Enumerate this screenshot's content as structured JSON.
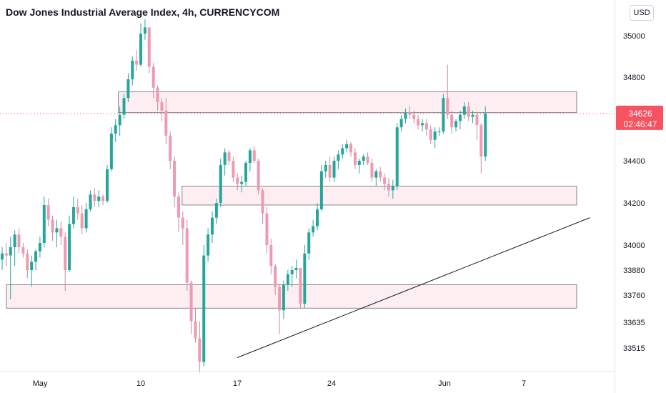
{
  "header": {
    "title": "Dow Jones Industrial Average Index, 4h, CURRENCYCOM",
    "currency_label": "USD"
  },
  "price_badge": {
    "price": "34626",
    "countdown": "02:46:47",
    "color": "#f7525f"
  },
  "colors": {
    "up": "#26a69a",
    "down": "#ef9ab0",
    "zone_fill": "#fdeef2",
    "zone_stroke": "#555555",
    "trendline": "#131722"
  },
  "chart_data": {
    "type": "candlestick",
    "title": "Dow Jones Industrial Average Index, 4h, CURRENCYCOM",
    "y_axis_ticks": [
      35000,
      34800,
      34400,
      34200,
      34000,
      33880,
      33760,
      33635,
      33515
    ],
    "x_axis_ticks": [
      {
        "label": "May",
        "date": "2021-05-01"
      },
      {
        "label": "10",
        "date": "2021-05-10"
      },
      {
        "label": "17",
        "date": "2021-05-17"
      },
      {
        "label": "24",
        "date": "2021-05-24"
      },
      {
        "label": "Jun",
        "date": "2021-06-01"
      },
      {
        "label": "7",
        "date": "2021-06-07"
      }
    ],
    "last_price": 34626,
    "zones": [
      {
        "from_date": "2021-05-08",
        "to_date": "2021-06-11",
        "low": 34630,
        "high": 34730
      },
      {
        "from_date": "2021-05-13",
        "to_date": "2021-06-11",
        "low": 34190,
        "high": 34280
      },
      {
        "from_date": "2021-04-28",
        "to_date": "2021-06-11",
        "low": 33700,
        "high": 33810
      }
    ],
    "trendline": {
      "start": [
        "2021-05-17",
        33470
      ],
      "end": [
        "2021-06-12",
        34130
      ]
    },
    "candles": [
      [
        33930,
        33990,
        33880,
        33960
      ],
      [
        33960,
        34010,
        33900,
        33950
      ],
      [
        33950,
        34040,
        33740,
        33990
      ],
      [
        33990,
        34070,
        33900,
        34050
      ],
      [
        34050,
        34080,
        33960,
        33990
      ],
      [
        33990,
        34010,
        33940,
        33960
      ],
      [
        33960,
        33980,
        33840,
        33880
      ],
      [
        33880,
        33950,
        33800,
        33920
      ],
      [
        33920,
        33980,
        33880,
        33970
      ],
      [
        33970,
        34040,
        33940,
        34010
      ],
      [
        34010,
        34230,
        33990,
        34190
      ],
      [
        34190,
        34220,
        34090,
        34120
      ],
      [
        34120,
        34140,
        34020,
        34060
      ],
      [
        34060,
        34120,
        33990,
        34080
      ],
      [
        34080,
        34110,
        34000,
        34040
      ],
      [
        34040,
        34060,
        33780,
        33880
      ],
      [
        33880,
        34140,
        33870,
        34100
      ],
      [
        34100,
        34230,
        34080,
        34180
      ],
      [
        34180,
        34220,
        34120,
        34150
      ],
      [
        34150,
        34190,
        34050,
        34080
      ],
      [
        34080,
        34200,
        34060,
        34170
      ],
      [
        34170,
        34260,
        34160,
        34240
      ],
      [
        34240,
        34270,
        34180,
        34210
      ],
      [
        34210,
        34260,
        34180,
        34230
      ],
      [
        34230,
        34240,
        34190,
        34210
      ],
      [
        34210,
        34380,
        34200,
        34360
      ],
      [
        34360,
        34560,
        34350,
        34530
      ],
      [
        34530,
        34600,
        34490,
        34570
      ],
      [
        34570,
        34660,
        34520,
        34620
      ],
      [
        34620,
        34720,
        34600,
        34700
      ],
      [
        34700,
        34820,
        34680,
        34790
      ],
      [
        34790,
        34900,
        34760,
        34880
      ],
      [
        34880,
        34930,
        34830,
        34860
      ],
      [
        34860,
        35060,
        34850,
        35010
      ],
      [
        35010,
        35080,
        34980,
        35040
      ],
      [
        35040,
        35040,
        34820,
        34850
      ],
      [
        34850,
        34870,
        34700,
        34750
      ],
      [
        34750,
        34760,
        34640,
        34680
      ],
      [
        34680,
        34700,
        34590,
        34640
      ],
      [
        34640,
        34700,
        34480,
        34520
      ],
      [
        34520,
        34540,
        34360,
        34400
      ],
      [
        34400,
        34420,
        34180,
        34230
      ],
      [
        34230,
        34250,
        34060,
        34130
      ],
      [
        34130,
        34160,
        34000,
        34080
      ],
      [
        34080,
        34120,
        33780,
        33820
      ],
      [
        33820,
        33830,
        33580,
        33640
      ],
      [
        33640,
        33700,
        33540,
        33560
      ],
      [
        33560,
        33640,
        33400,
        33450
      ],
      [
        33450,
        34000,
        33430,
        33950
      ],
      [
        33950,
        34080,
        33920,
        34050
      ],
      [
        34050,
        34160,
        34010,
        34130
      ],
      [
        34130,
        34220,
        34100,
        34200
      ],
      [
        34200,
        34410,
        34180,
        34380
      ],
      [
        34380,
        34460,
        34330,
        34440
      ],
      [
        34440,
        34450,
        34380,
        34400
      ],
      [
        34400,
        34420,
        34300,
        34320
      ],
      [
        34320,
        34340,
        34260,
        34290
      ],
      [
        34290,
        34330,
        34250,
        34300
      ],
      [
        34300,
        34400,
        34280,
        34390
      ],
      [
        34390,
        34460,
        34350,
        34450
      ],
      [
        34450,
        34470,
        34390,
        34400
      ],
      [
        34400,
        34410,
        34240,
        34260
      ],
      [
        34260,
        34270,
        34100,
        34150
      ],
      [
        34150,
        34180,
        33960,
        34000
      ],
      [
        34000,
        34030,
        33860,
        33900
      ],
      [
        33900,
        33910,
        33760,
        33800
      ],
      [
        33800,
        33810,
        33580,
        33690
      ],
      [
        33690,
        33830,
        33650,
        33810
      ],
      [
        33810,
        33880,
        33780,
        33860
      ],
      [
        33860,
        33900,
        33800,
        33880
      ],
      [
        33880,
        33930,
        33840,
        33890
      ],
      [
        33890,
        33890,
        33700,
        33720
      ],
      [
        33720,
        34000,
        33700,
        33960
      ],
      [
        33960,
        34080,
        33930,
        34060
      ],
      [
        34060,
        34120,
        34040,
        34090
      ],
      [
        34090,
        34200,
        34070,
        34170
      ],
      [
        34170,
        34380,
        34160,
        34350
      ],
      [
        34350,
        34400,
        34320,
        34380
      ],
      [
        34380,
        34420,
        34300,
        34320
      ],
      [
        34320,
        34420,
        34300,
        34400
      ],
      [
        34400,
        34450,
        34360,
        34430
      ],
      [
        34430,
        34480,
        34410,
        34460
      ],
      [
        34460,
        34500,
        34440,
        34480
      ],
      [
        34480,
        34490,
        34420,
        34440
      ],
      [
        34440,
        34460,
        34360,
        34380
      ],
      [
        34380,
        34410,
        34340,
        34400
      ],
      [
        34400,
        34430,
        34380,
        34420
      ],
      [
        34420,
        34440,
        34380,
        34390
      ],
      [
        34390,
        34410,
        34300,
        34320
      ],
      [
        34320,
        34360,
        34280,
        34350
      ],
      [
        34350,
        34370,
        34300,
        34320
      ],
      [
        34320,
        34340,
        34260,
        34290
      ],
      [
        34290,
        34320,
        34230,
        34260
      ],
      [
        34260,
        34310,
        34220,
        34280
      ],
      [
        34280,
        34580,
        34260,
        34560
      ],
      [
        34560,
        34620,
        34540,
        34600
      ],
      [
        34600,
        34650,
        34580,
        34630
      ],
      [
        34630,
        34660,
        34600,
        34620
      ],
      [
        34620,
        34640,
        34580,
        34600
      ],
      [
        34600,
        34620,
        34550,
        34570
      ],
      [
        34570,
        34600,
        34540,
        34580
      ],
      [
        34580,
        34600,
        34520,
        34550
      ],
      [
        34550,
        34570,
        34480,
        34500
      ],
      [
        34500,
        34560,
        34460,
        34540
      ],
      [
        34540,
        34560,
        34520,
        34540
      ],
      [
        34540,
        34720,
        34530,
        34700
      ],
      [
        34700,
        34860,
        34600,
        34620
      ],
      [
        34620,
        34640,
        34530,
        34560
      ],
      [
        34560,
        34600,
        34540,
        34590
      ],
      [
        34590,
        34640,
        34550,
        34620
      ],
      [
        34620,
        34680,
        34600,
        34660
      ],
      [
        34660,
        34680,
        34590,
        34610
      ],
      [
        34610,
        34640,
        34580,
        34620
      ],
      [
        34620,
        34630,
        34500,
        34570
      ],
      [
        34570,
        34580,
        34340,
        34420
      ],
      [
        34420,
        34660,
        34400,
        34626
      ]
    ]
  }
}
